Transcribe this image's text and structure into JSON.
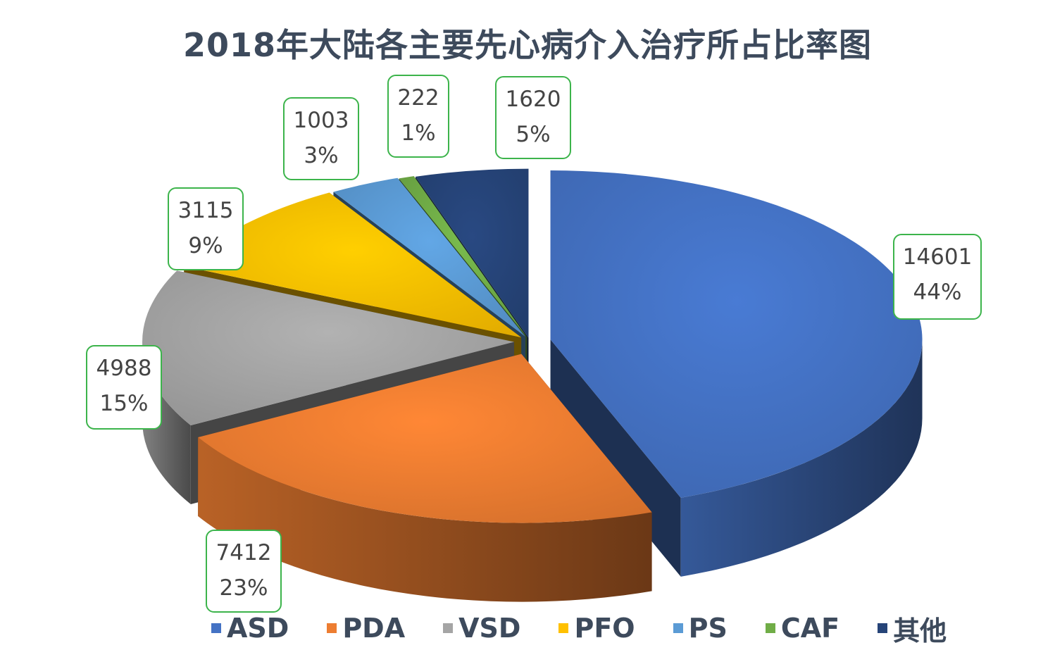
{
  "chart_data": {
    "type": "pie",
    "title": "2018年大陆各主要先心病介入治疗所占比率图",
    "slices": [
      {
        "name": "ASD",
        "value": 14601,
        "percent": "44%",
        "color": "#4472c4"
      },
      {
        "name": "PDA",
        "value": 7412,
        "percent": "23%",
        "color": "#ed7d31"
      },
      {
        "name": "VSD",
        "value": 4988,
        "percent": "15%",
        "color": "#a5a5a5"
      },
      {
        "name": "PFO",
        "value": 3115,
        "percent": "9%",
        "color": "#ffc000"
      },
      {
        "name": "PS",
        "value": 1003,
        "percent": "3%",
        "color": "#5b9bd5"
      },
      {
        "name": "CAF",
        "value": 222,
        "percent": "1%",
        "color": "#70ad47"
      },
      {
        "name": "其他",
        "value": 1620,
        "percent": "5%",
        "color": "#264478"
      }
    ],
    "legend": "bottom",
    "label_border_color": "#3cb44b"
  }
}
